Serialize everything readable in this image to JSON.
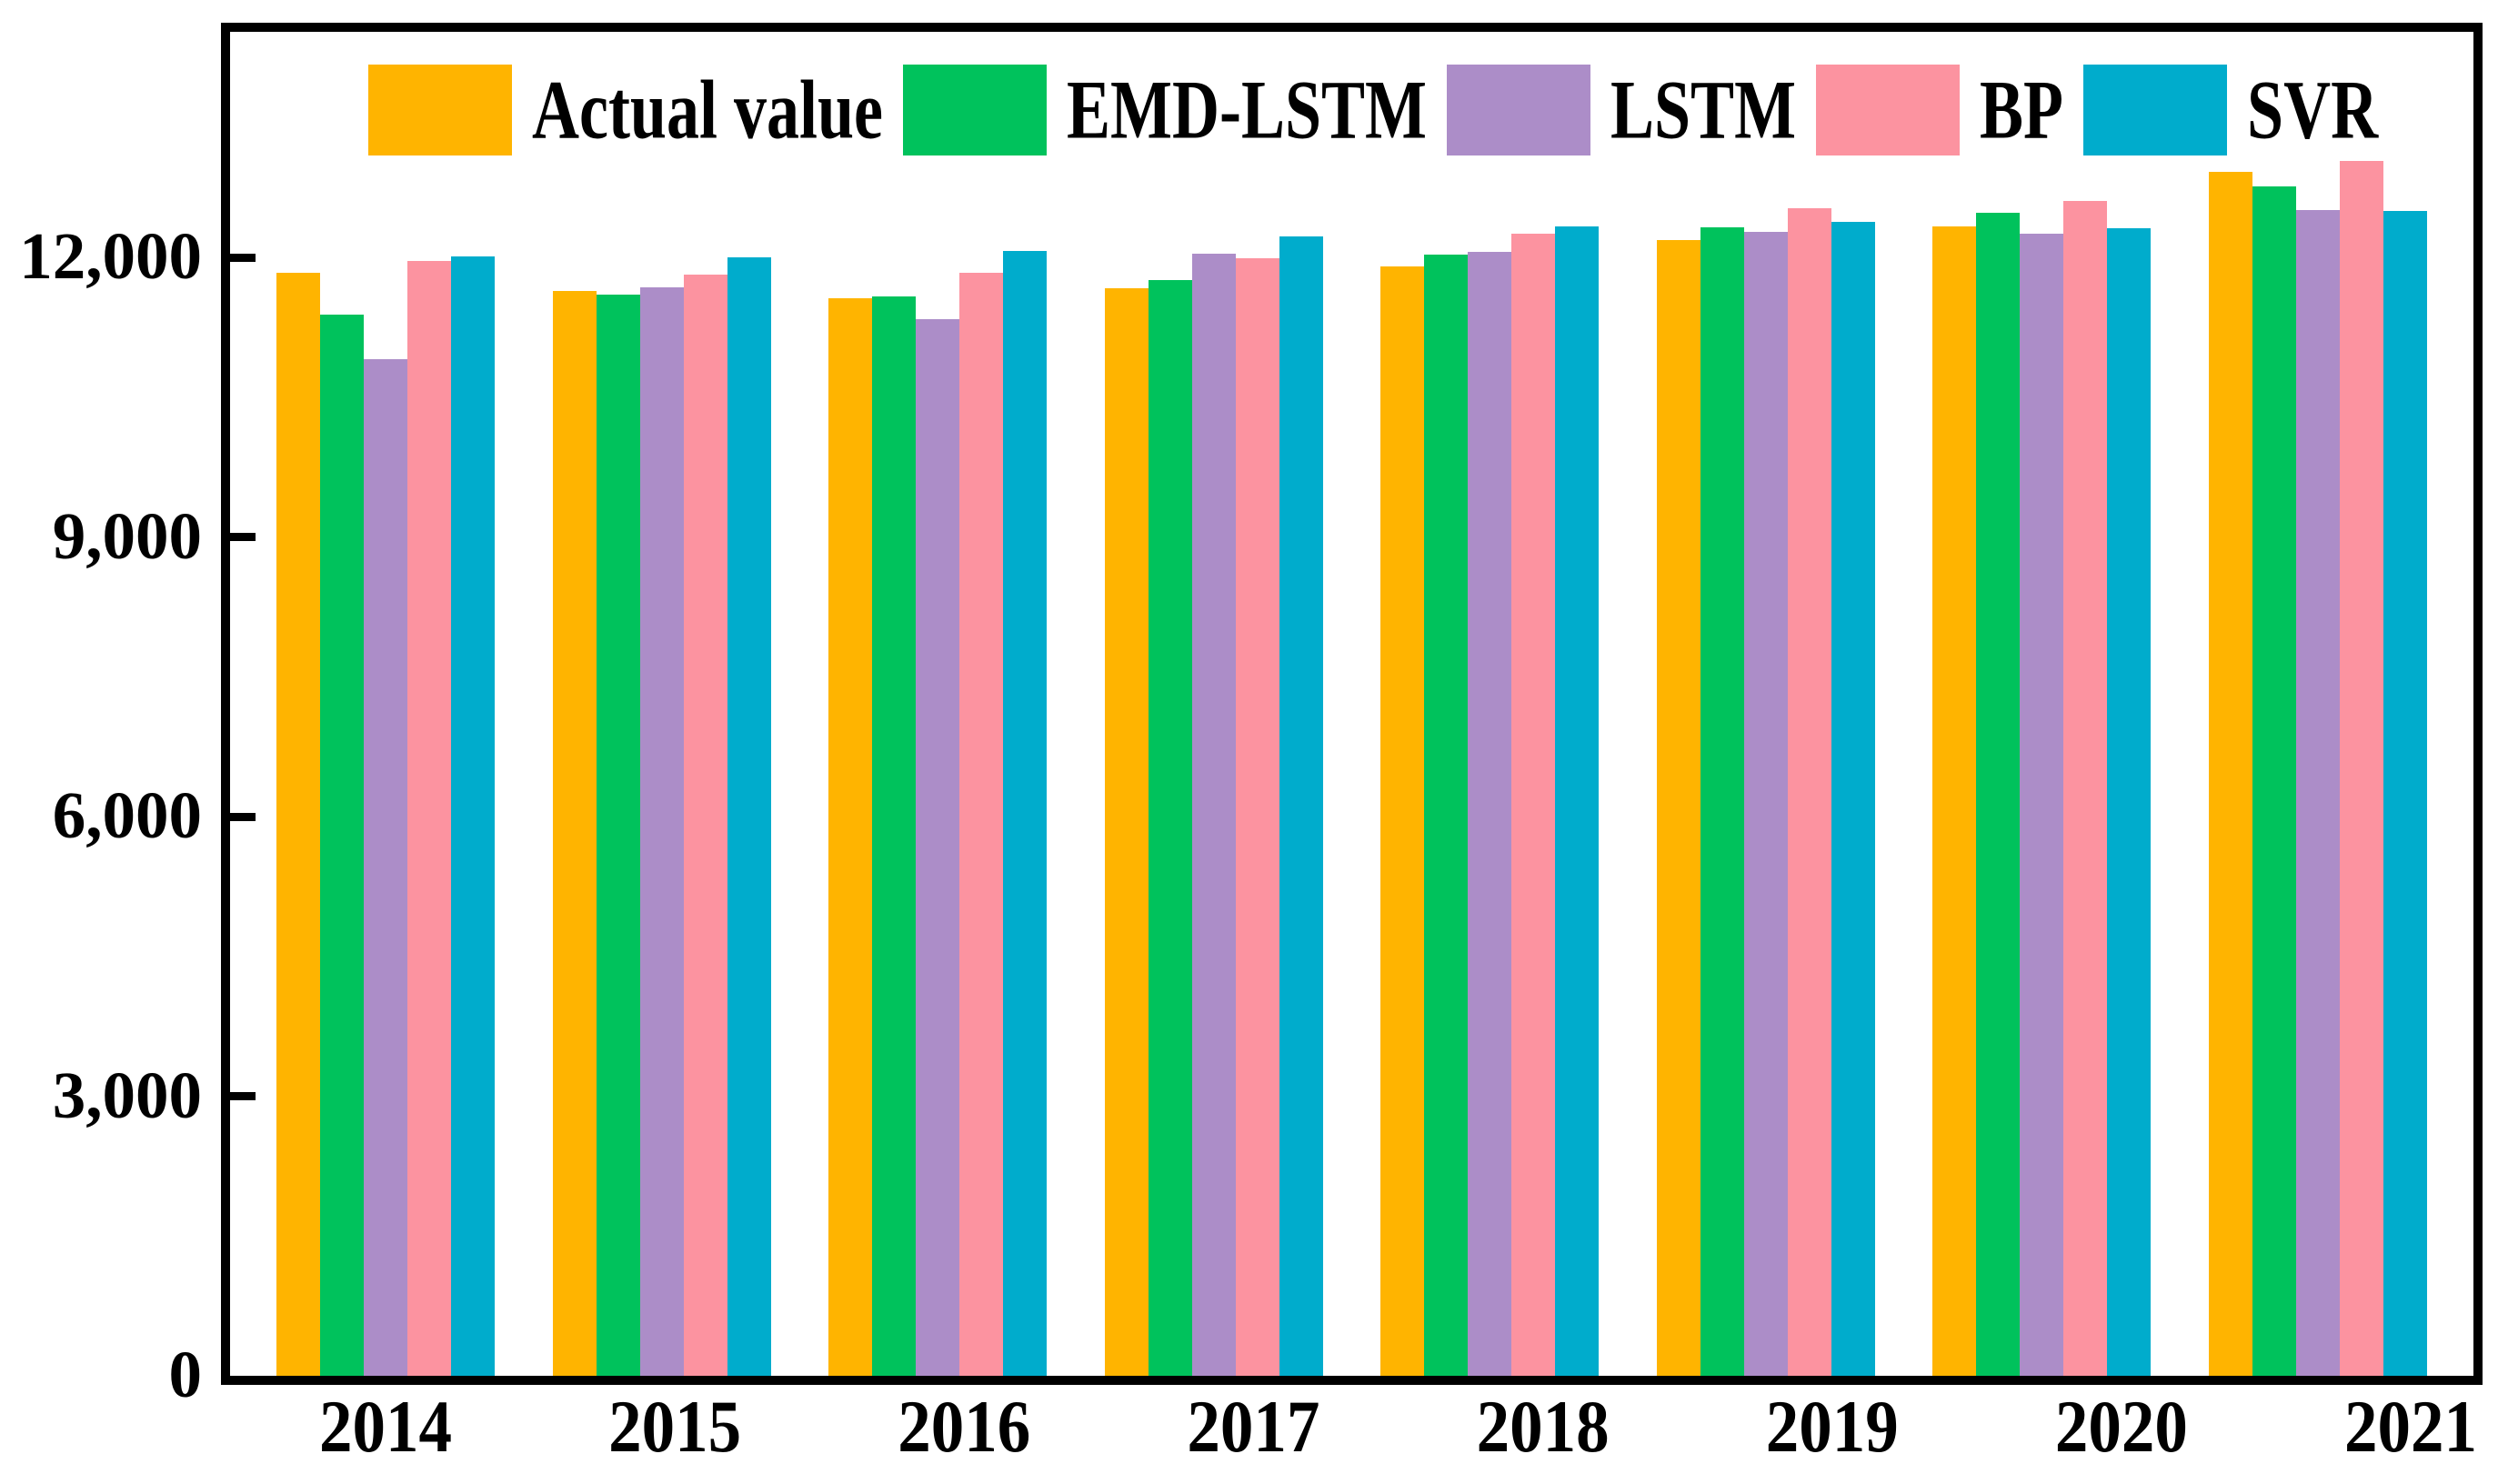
{
  "figure": {
    "background_color": "#FFFFFF",
    "spine_color": "#000000",
    "text_color": "#000000"
  },
  "chart_data": {
    "type": "bar",
    "title": "",
    "xlabel": "",
    "ylabel": "",
    "grid": false,
    "legend_position": "top-inside",
    "categories": [
      "2014",
      "2015",
      "2016",
      "2017",
      "2018",
      "2019",
      "2020",
      "2021"
    ],
    "series": [
      {
        "name": "Actual value",
        "color": "#FFB400",
        "values": [
          11830,
          11640,
          11560,
          11670,
          11900,
          12190,
          12330,
          12920
        ]
      },
      {
        "name": "EMD-LSTM",
        "color": "#00C25C",
        "values": [
          11390,
          11600,
          11580,
          11760,
          12030,
          12320,
          12480,
          12760
        ]
      },
      {
        "name": "LSTM",
        "color": "#AC8DC8",
        "values": [
          10910,
          11680,
          11340,
          12040,
          12060,
          12270,
          12250,
          12510
        ]
      },
      {
        "name": "BP",
        "color": "#FC93A0",
        "values": [
          11960,
          11810,
          11830,
          11990,
          12250,
          12530,
          12600,
          13030
        ]
      },
      {
        "name": "SVR",
        "color": "#00ACCC",
        "values": [
          12010,
          12000,
          12070,
          12220,
          12330,
          12380,
          12310,
          12500
        ]
      }
    ],
    "ylim": [
      0,
      14300
    ],
    "yticks": {
      "values": [
        0,
        3000,
        6000,
        9000,
        12000
      ],
      "labels": [
        "0",
        "3,000",
        "6,000",
        "9,000",
        "12,000"
      ]
    }
  }
}
